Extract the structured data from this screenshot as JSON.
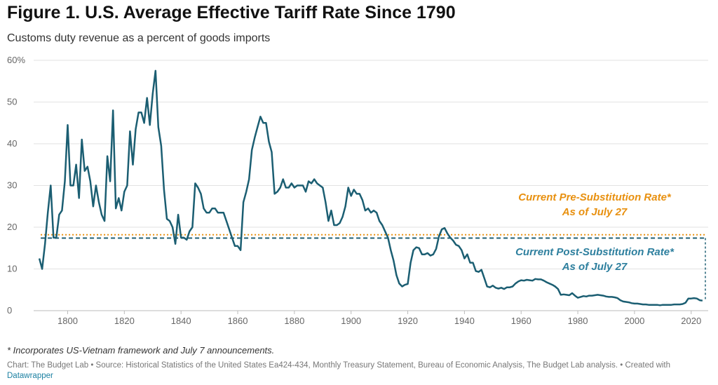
{
  "title": "Figure 1. U.S. Average Effective Tariff Rate Since 1790",
  "subtitle": "Customs duty revenue as a percent of goods imports",
  "footnote": "* Incorporates US-Vietnam framework and July 7 announcements.",
  "source": {
    "text": "Chart: The Budget Lab • Source: Historical Statistics of the United States Ea424-434, Monthly Treasury Statement, Bureau of Economic Analysis, The Budget Lab analysis. • Created with",
    "link": "Datawrapper"
  },
  "colors": {
    "line": "#1b5e72",
    "pre_rate": "#e8900f",
    "post_rate": "#1f5f74",
    "grid": "#e2e2e2",
    "annotation_post": "#2d7f9e"
  },
  "chart_data": {
    "type": "line",
    "ylim": [
      0,
      60
    ],
    "xlim": [
      1788,
      2026
    ],
    "y_ticks": [
      {
        "value": 0,
        "label": "0"
      },
      {
        "value": 10,
        "label": "10"
      },
      {
        "value": 20,
        "label": "20"
      },
      {
        "value": 30,
        "label": "30"
      },
      {
        "value": 40,
        "label": "40"
      },
      {
        "value": 50,
        "label": "50"
      },
      {
        "value": 60,
        "label": "60%"
      }
    ],
    "x_ticks": [
      {
        "value": 1800,
        "label": "1800"
      },
      {
        "value": 1820,
        "label": "1820"
      },
      {
        "value": 1840,
        "label": "1840"
      },
      {
        "value": 1860,
        "label": "1860"
      },
      {
        "value": 1880,
        "label": "1880"
      },
      {
        "value": 1900,
        "label": "1900"
      },
      {
        "value": 1920,
        "label": "1920"
      },
      {
        "value": 1940,
        "label": "1940"
      },
      {
        "value": 1960,
        "label": "1960"
      },
      {
        "value": 1980,
        "label": "1980"
      },
      {
        "value": 2000,
        "label": "2000"
      },
      {
        "value": 2020,
        "label": "2020"
      }
    ],
    "grid": true,
    "series": [
      {
        "values": [
          [
            1790,
            12.5
          ],
          [
            1791,
            10.0
          ],
          [
            1792,
            16.0
          ],
          [
            1793,
            23.5
          ],
          [
            1794,
            30.0
          ],
          [
            1795,
            17.5
          ],
          [
            1796,
            17.5
          ],
          [
            1797,
            23.0
          ],
          [
            1798,
            24.0
          ],
          [
            1799,
            31.0
          ],
          [
            1800,
            44.5
          ],
          [
            1801,
            30.0
          ],
          [
            1802,
            30.0
          ],
          [
            1803,
            35.0
          ],
          [
            1804,
            27.0
          ],
          [
            1805,
            41.0
          ],
          [
            1806,
            33.5
          ],
          [
            1807,
            34.5
          ],
          [
            1808,
            31.0
          ],
          [
            1809,
            25.0
          ],
          [
            1810,
            30.0
          ],
          [
            1811,
            26.0
          ],
          [
            1812,
            23.0
          ],
          [
            1813,
            21.5
          ],
          [
            1814,
            37.0
          ],
          [
            1815,
            31.0
          ],
          [
            1816,
            48.0
          ],
          [
            1817,
            24.5
          ],
          [
            1818,
            27.0
          ],
          [
            1819,
            24.0
          ],
          [
            1820,
            28.5
          ],
          [
            1821,
            30.0
          ],
          [
            1822,
            43.0
          ],
          [
            1823,
            35.0
          ],
          [
            1824,
            43.5
          ],
          [
            1825,
            47.5
          ],
          [
            1826,
            47.5
          ],
          [
            1827,
            45.0
          ],
          [
            1828,
            51.0
          ],
          [
            1829,
            44.5
          ],
          [
            1830,
            52.0
          ],
          [
            1831,
            57.5
          ],
          [
            1832,
            44.0
          ],
          [
            1833,
            39.5
          ],
          [
            1834,
            29.0
          ],
          [
            1835,
            22.0
          ],
          [
            1836,
            21.5
          ],
          [
            1837,
            20.0
          ],
          [
            1838,
            16.0
          ],
          [
            1839,
            23.0
          ],
          [
            1840,
            17.5
          ],
          [
            1841,
            17.5
          ],
          [
            1842,
            17.0
          ],
          [
            1843,
            19.0
          ],
          [
            1844,
            20.0
          ],
          [
            1845,
            30.5
          ],
          [
            1846,
            29.5
          ],
          [
            1847,
            28.0
          ],
          [
            1848,
            24.5
          ],
          [
            1849,
            23.5
          ],
          [
            1850,
            23.5
          ],
          [
            1851,
            24.5
          ],
          [
            1852,
            24.5
          ],
          [
            1853,
            23.5
          ],
          [
            1854,
            23.5
          ],
          [
            1855,
            23.5
          ],
          [
            1856,
            21.5
          ],
          [
            1857,
            19.5
          ],
          [
            1858,
            17.5
          ],
          [
            1859,
            15.5
          ],
          [
            1860,
            15.5
          ],
          [
            1861,
            14.5
          ],
          [
            1862,
            26.0
          ],
          [
            1863,
            28.5
          ],
          [
            1864,
            31.5
          ],
          [
            1865,
            38.5
          ],
          [
            1866,
            41.5
          ],
          [
            1867,
            44.0
          ],
          [
            1868,
            46.5
          ],
          [
            1869,
            45.0
          ],
          [
            1870,
            45.0
          ],
          [
            1871,
            40.5
          ],
          [
            1872,
            38.0
          ],
          [
            1873,
            28.0
          ],
          [
            1874,
            28.5
          ],
          [
            1875,
            29.5
          ],
          [
            1876,
            31.5
          ],
          [
            1877,
            29.5
          ],
          [
            1878,
            29.5
          ],
          [
            1879,
            30.5
          ],
          [
            1880,
            29.5
          ],
          [
            1881,
            30.0
          ],
          [
            1882,
            30.0
          ],
          [
            1883,
            30.0
          ],
          [
            1884,
            28.5
          ],
          [
            1885,
            31.0
          ],
          [
            1886,
            30.5
          ],
          [
            1887,
            31.5
          ],
          [
            1888,
            30.5
          ],
          [
            1889,
            30.0
          ],
          [
            1890,
            29.5
          ],
          [
            1891,
            26.0
          ],
          [
            1892,
            21.5
          ],
          [
            1893,
            24.0
          ],
          [
            1894,
            20.5
          ],
          [
            1895,
            20.5
          ],
          [
            1896,
            21.0
          ],
          [
            1897,
            22.5
          ],
          [
            1898,
            25.0
          ],
          [
            1899,
            29.5
          ],
          [
            1900,
            27.5
          ],
          [
            1901,
            29.0
          ],
          [
            1902,
            28.0
          ],
          [
            1903,
            28.0
          ],
          [
            1904,
            26.5
          ],
          [
            1905,
            24.0
          ],
          [
            1906,
            24.5
          ],
          [
            1907,
            23.5
          ],
          [
            1908,
            24.0
          ],
          [
            1909,
            23.5
          ],
          [
            1910,
            21.5
          ],
          [
            1911,
            20.5
          ],
          [
            1912,
            19.0
          ],
          [
            1913,
            17.5
          ],
          [
            1914,
            14.5
          ],
          [
            1915,
            12.0
          ],
          [
            1916,
            8.5
          ],
          [
            1917,
            6.5
          ],
          [
            1918,
            5.8
          ],
          [
            1919,
            6.2
          ],
          [
            1920,
            6.4
          ],
          [
            1921,
            11.5
          ],
          [
            1922,
            14.5
          ],
          [
            1923,
            15.2
          ],
          [
            1924,
            15.0
          ],
          [
            1925,
            13.5
          ],
          [
            1926,
            13.5
          ],
          [
            1927,
            13.8
          ],
          [
            1928,
            13.2
          ],
          [
            1929,
            13.5
          ],
          [
            1930,
            14.8
          ],
          [
            1931,
            17.8
          ],
          [
            1932,
            19.5
          ],
          [
            1933,
            19.8
          ],
          [
            1934,
            18.5
          ],
          [
            1935,
            17.5
          ],
          [
            1936,
            16.8
          ],
          [
            1937,
            15.8
          ],
          [
            1938,
            15.5
          ],
          [
            1939,
            14.5
          ],
          [
            1940,
            12.5
          ],
          [
            1941,
            13.5
          ],
          [
            1942,
            11.5
          ],
          [
            1943,
            11.5
          ],
          [
            1944,
            9.5
          ],
          [
            1945,
            9.3
          ],
          [
            1946,
            9.8
          ],
          [
            1947,
            7.8
          ],
          [
            1948,
            5.8
          ],
          [
            1949,
            5.6
          ],
          [
            1950,
            6.0
          ],
          [
            1951,
            5.5
          ],
          [
            1952,
            5.3
          ],
          [
            1953,
            5.5
          ],
          [
            1954,
            5.2
          ],
          [
            1955,
            5.6
          ],
          [
            1956,
            5.6
          ],
          [
            1957,
            5.8
          ],
          [
            1958,
            6.5
          ],
          [
            1959,
            7.0
          ],
          [
            1960,
            7.3
          ],
          [
            1961,
            7.2
          ],
          [
            1962,
            7.4
          ],
          [
            1963,
            7.3
          ],
          [
            1964,
            7.2
          ],
          [
            1965,
            7.6
          ],
          [
            1966,
            7.5
          ],
          [
            1967,
            7.5
          ],
          [
            1968,
            7.2
          ],
          [
            1969,
            6.8
          ],
          [
            1970,
            6.5
          ],
          [
            1971,
            6.2
          ],
          [
            1972,
            5.8
          ],
          [
            1973,
            5.2
          ],
          [
            1974,
            3.8
          ],
          [
            1975,
            3.9
          ],
          [
            1976,
            3.8
          ],
          [
            1977,
            3.7
          ],
          [
            1978,
            4.2
          ],
          [
            1979,
            3.6
          ],
          [
            1980,
            3.1
          ],
          [
            1981,
            3.3
          ],
          [
            1982,
            3.5
          ],
          [
            1983,
            3.4
          ],
          [
            1984,
            3.6
          ],
          [
            1985,
            3.6
          ],
          [
            1986,
            3.7
          ],
          [
            1987,
            3.8
          ],
          [
            1988,
            3.7
          ],
          [
            1989,
            3.6
          ],
          [
            1990,
            3.4
          ],
          [
            1991,
            3.3
          ],
          [
            1992,
            3.3
          ],
          [
            1993,
            3.2
          ],
          [
            1994,
            3.0
          ],
          [
            1995,
            2.5
          ],
          [
            1996,
            2.2
          ],
          [
            1997,
            2.1
          ],
          [
            1998,
            2.0
          ],
          [
            1999,
            1.8
          ],
          [
            2000,
            1.7
          ],
          [
            2001,
            1.7
          ],
          [
            2002,
            1.6
          ],
          [
            2003,
            1.5
          ],
          [
            2004,
            1.5
          ],
          [
            2005,
            1.4
          ],
          [
            2006,
            1.4
          ],
          [
            2007,
            1.4
          ],
          [
            2008,
            1.4
          ],
          [
            2009,
            1.3
          ],
          [
            2010,
            1.4
          ],
          [
            2011,
            1.4
          ],
          [
            2012,
            1.4
          ],
          [
            2013,
            1.4
          ],
          [
            2014,
            1.5
          ],
          [
            2015,
            1.5
          ],
          [
            2016,
            1.5
          ],
          [
            2017,
            1.6
          ],
          [
            2018,
            1.9
          ],
          [
            2019,
            2.9
          ],
          [
            2020,
            2.9
          ],
          [
            2021,
            3.0
          ],
          [
            2022,
            2.9
          ],
          [
            2023,
            2.5
          ],
          [
            2024,
            2.4
          ]
        ]
      }
    ],
    "reference_lines": [
      {
        "key": "pre",
        "value": 18.2,
        "style": "dotted",
        "label_lines": [
          "Current Pre-Substitution Rate*",
          "As of July 27"
        ]
      },
      {
        "key": "post",
        "value": 17.4,
        "style": "dashed",
        "label_lines": [
          "Current Post-Substitution Rate*",
          "As of July 27"
        ]
      }
    ],
    "latest_year": 2025
  }
}
